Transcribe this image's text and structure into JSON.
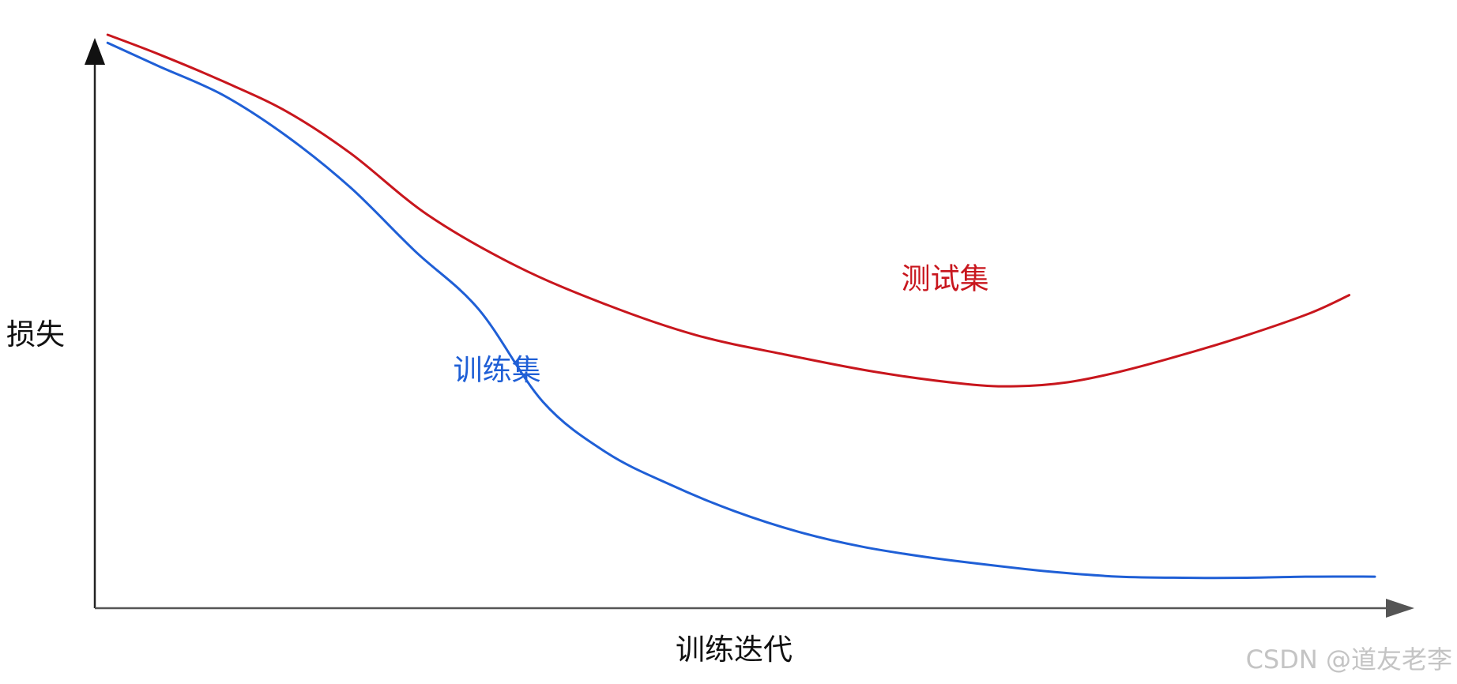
{
  "chart_data": {
    "type": "line",
    "title": "",
    "xlabel": "训练迭代",
    "ylabel": "损失",
    "xlim": [
      0,
      100
    ],
    "ylim": [
      0,
      100
    ],
    "grid": false,
    "legend": "inline labels",
    "series": [
      {
        "name": "测试集",
        "color": "#c8161d",
        "x": [
          1,
          5,
          10,
          15,
          20,
          26,
          33,
          40,
          47,
          54,
          61,
          68,
          72,
          76,
          80,
          85,
          90,
          95,
          98
        ],
        "y": [
          100,
          96.6,
          91.9,
          86.6,
          79.3,
          68.6,
          59.6,
          52.9,
          47.6,
          44.2,
          41.2,
          39.1,
          38.7,
          39.4,
          41.2,
          44.2,
          47.6,
          51.5,
          54.6
        ]
      },
      {
        "name": "训练集",
        "color": "#1f5fd6",
        "x": [
          1,
          5,
          10,
          15,
          20,
          25,
          30,
          35,
          40,
          45,
          50,
          55,
          60,
          65,
          70,
          75,
          80,
          85,
          90,
          95,
          100
        ],
        "y": [
          98.6,
          94.5,
          89.5,
          82.3,
          73.3,
          62.3,
          52.1,
          36.0,
          27.1,
          21.5,
          16.9,
          13.3,
          10.7,
          8.9,
          7.5,
          6.3,
          5.5,
          5.3,
          5.3,
          5.5,
          5.5
        ]
      }
    ],
    "annotations": [
      {
        "text": "测试集",
        "x": 63,
        "y": 55.7,
        "color": "#c8161d"
      },
      {
        "text": "训练集",
        "x": 28,
        "y": 39.8,
        "color": "#1f5fd6"
      }
    ]
  },
  "watermark": "CSDN @道友老李"
}
